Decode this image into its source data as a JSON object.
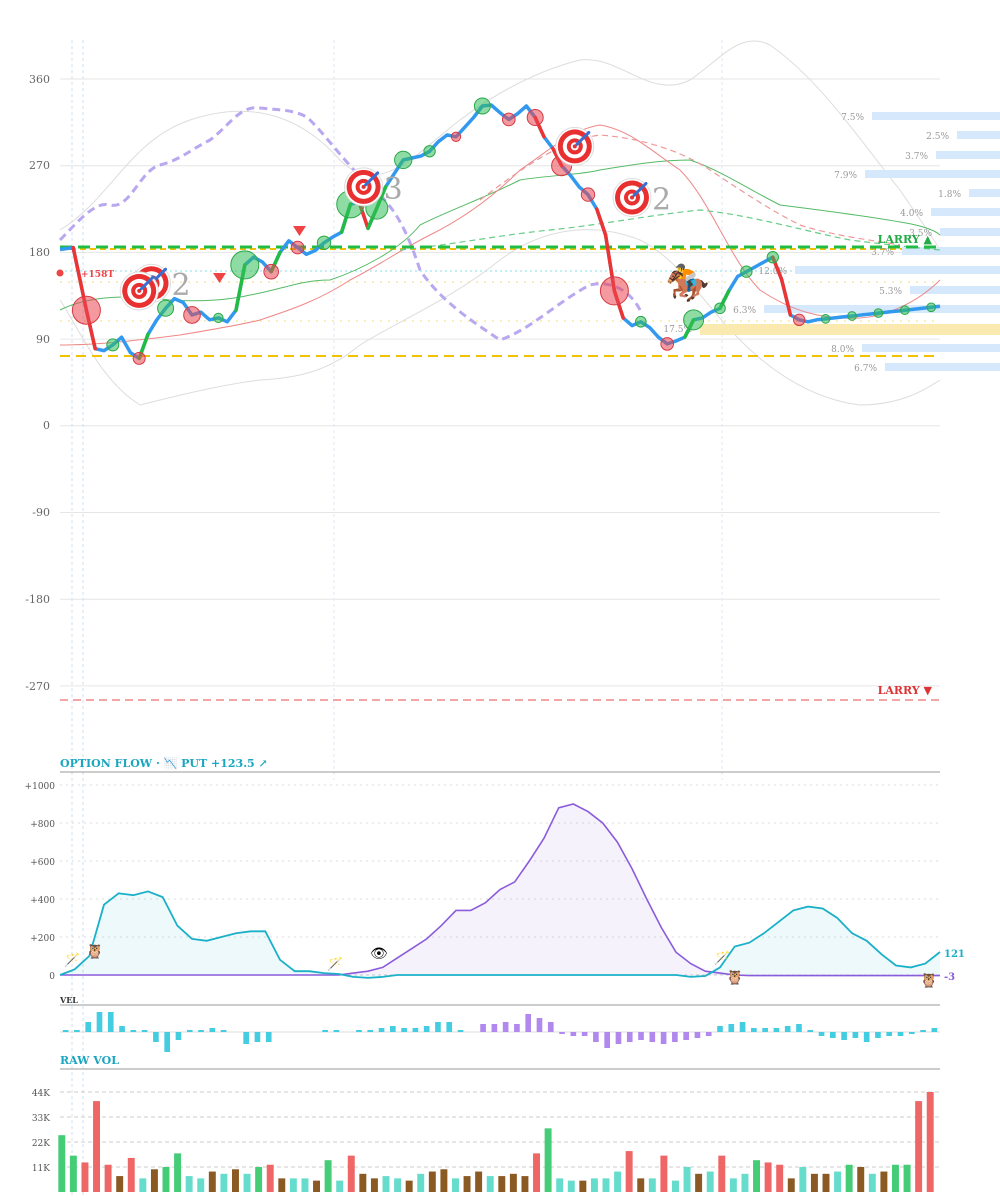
{
  "colors": {
    "price_line": "#3399ee",
    "up": "#22bb44",
    "down": "#ee3333",
    "ma_purple": "#b9a8f0",
    "band_grey": "#d8d8d8",
    "gold": "#f2c200",
    "flow_teal": "#1ab0c8",
    "flow_purple": "#8a5cdb",
    "vol_green": "#44cc77",
    "vol_red": "#ee6666",
    "vol_teal": "#66ddcc",
    "vol_brown": "#8a5a22",
    "vel_teal": "#44cce0",
    "vel_purple": "#b088ee",
    "pct_bar": "#d6e8fb"
  },
  "main_chart": {
    "type": "line",
    "y_ticks": [
      "360",
      "270",
      "180",
      "90",
      "0",
      "-90",
      "-180",
      "-270"
    ],
    "ylim": [
      -285,
      400
    ],
    "xlim": [
      0,
      100
    ],
    "price": {
      "x": [
        0,
        1.5,
        3,
        4,
        5,
        6,
        7,
        8,
        9,
        10,
        11,
        12,
        13,
        14,
        15,
        16,
        17,
        18,
        19,
        20,
        21,
        22,
        23,
        24,
        25,
        26,
        27,
        28,
        29,
        30,
        31,
        32,
        33,
        34,
        35,
        36,
        37,
        38,
        39,
        40,
        41,
        42,
        43,
        44,
        45,
        46,
        47,
        48,
        49,
        50,
        51,
        52,
        53,
        54,
        55,
        56,
        57,
        58,
        59,
        60,
        61,
        62,
        63,
        64,
        65,
        66,
        67,
        68,
        69,
        70,
        71,
        72,
        73,
        74,
        75,
        76,
        77,
        78,
        79,
        80,
        81,
        82,
        83,
        84,
        85,
        86,
        87,
        88,
        89,
        90,
        91,
        92,
        93,
        94,
        95,
        96,
        97,
        98,
        99,
        100
      ],
      "y": [
        183,
        185,
        120,
        80,
        78,
        84,
        92,
        76,
        70,
        95,
        110,
        122,
        132,
        128,
        115,
        118,
        110,
        112,
        108,
        120,
        167,
        175,
        170,
        160,
        180,
        192,
        185,
        178,
        182,
        190,
        196,
        201,
        230,
        232,
        205,
        226,
        248,
        262,
        276,
        278,
        280,
        285,
        295,
        302,
        300,
        310,
        320,
        332,
        333,
        325,
        318,
        324,
        332,
        320,
        300,
        288,
        270,
        260,
        248,
        240,
        225,
        198,
        140,
        112,
        104,
        108,
        102,
        92,
        85,
        88,
        92,
        110,
        112,
        118,
        122,
        140,
        155,
        160,
        165,
        170,
        175,
        152,
        115,
        110,
        108,
        110,
        111,
        112,
        113,
        114,
        115,
        116,
        117,
        118,
        119,
        120,
        121,
        122,
        123,
        124
      ]
    },
    "levels": [
      {
        "label": "LARRY ▲",
        "value": 185
      },
      {
        "label": "LARRY ▼",
        "value": -285
      }
    ],
    "price_badge": "+158T",
    "markers": [
      {
        "x": 10.4,
        "y": 148,
        "count": "2"
      },
      {
        "x": 9,
        "y": 140,
        "count": ""
      },
      {
        "x": 34.5,
        "y": 248,
        "count": "3"
      },
      {
        "x": 58.5,
        "y": 290,
        "count": ""
      },
      {
        "x": 65,
        "y": 237,
        "count": "2"
      }
    ],
    "pct_labels": [
      "7.5%",
      "2.5%",
      "3.7%",
      "7.9%",
      "1.8%",
      "4.0%",
      "3.5%",
      "3.7%",
      "12.0%",
      "5.3%",
      "6.3%",
      "17.5%",
      "8.0%",
      "6.7%"
    ]
  },
  "option_flow": {
    "title": "OPTION FLOW · 📉 PUT +123.5 ↗",
    "y_ticks": [
      "+1000",
      "+800",
      "+600",
      "+400",
      "+200",
      "0"
    ],
    "ylim": [
      -30,
      1000
    ],
    "teal": [
      0,
      30,
      100,
      370,
      430,
      420,
      440,
      410,
      260,
      190,
      180,
      200,
      220,
      230,
      230,
      80,
      20,
      20,
      10,
      5,
      -10,
      -15,
      -10,
      0,
      0,
      0,
      0,
      0,
      0,
      0,
      0,
      0,
      0,
      0,
      0,
      0,
      0,
      0,
      0,
      0,
      0,
      0,
      0,
      -10,
      -5,
      40,
      150,
      170,
      220,
      280,
      340,
      360,
      350,
      300,
      220,
      180,
      110,
      50,
      40,
      60,
      121
    ],
    "purple": [
      0,
      0,
      0,
      0,
      0,
      0,
      0,
      0,
      0,
      0,
      0,
      0,
      0,
      0,
      0,
      0,
      0,
      0,
      0,
      0,
      10,
      20,
      40,
      90,
      140,
      190,
      260,
      340,
      340,
      380,
      450,
      490,
      600,
      720,
      880,
      900,
      860,
      800,
      700,
      560,
      400,
      250,
      120,
      60,
      20,
      10,
      0,
      -3,
      -3,
      -3,
      -3,
      -3,
      -3,
      -3,
      -3,
      -3,
      -3,
      -3,
      -3,
      -3,
      -3
    ],
    "end_labels": [
      "121",
      "-3"
    ]
  },
  "velocity": {
    "title": "VEL",
    "values": [
      0.1,
      0.1,
      0.5,
      1.0,
      1.0,
      0.3,
      0.1,
      0.1,
      -0.5,
      -1.0,
      -0.4,
      0.1,
      0.1,
      0.2,
      0.1,
      0,
      -0.6,
      -0.5,
      -0.5,
      0,
      0,
      0,
      0,
      0.1,
      0.1,
      0,
      0.1,
      0.1,
      0.2,
      0.3,
      0.2,
      0.2,
      0.3,
      0.5,
      0.5,
      0.1,
      0,
      0.4,
      0.4,
      0.5,
      0.4,
      0.9,
      0.7,
      0.5,
      -0.1,
      -0.2,
      -0.2,
      -0.5,
      -0.8,
      -0.6,
      -0.5,
      -0.4,
      -0.5,
      -0.6,
      -0.5,
      -0.4,
      -0.3,
      -0.2,
      0.3,
      0.4,
      0.5,
      0.2,
      0.2,
      0.2,
      0.3,
      0.4,
      0.1,
      -0.2,
      -0.3,
      -0.4,
      -0.3,
      -0.5,
      -0.3,
      -0.2,
      -0.2,
      -0.1,
      0.1,
      0.2
    ],
    "ylim": [
      -1.2,
      1.2
    ]
  },
  "raw_vol": {
    "title": "RAW VOL",
    "y_ticks": [
      "44K",
      "33K",
      "22K",
      "11K"
    ],
    "ylim": [
      0,
      46000
    ],
    "bars": [
      {
        "v": 25000,
        "c": "green"
      },
      {
        "v": 16000,
        "c": "green"
      },
      {
        "v": 13000,
        "c": "red"
      },
      {
        "v": 40000,
        "c": "red"
      },
      {
        "v": 12000,
        "c": "red"
      },
      {
        "v": 7000,
        "c": "brown"
      },
      {
        "v": 15000,
        "c": "red"
      },
      {
        "v": 6000,
        "c": "teal"
      },
      {
        "v": 10000,
        "c": "brown"
      },
      {
        "v": 11000,
        "c": "green"
      },
      {
        "v": 17000,
        "c": "green"
      },
      {
        "v": 7000,
        "c": "teal"
      },
      {
        "v": 6000,
        "c": "teal"
      },
      {
        "v": 9000,
        "c": "brown"
      },
      {
        "v": 8000,
        "c": "teal"
      },
      {
        "v": 10000,
        "c": "brown"
      },
      {
        "v": 8000,
        "c": "teal"
      },
      {
        "v": 11000,
        "c": "green"
      },
      {
        "v": 12000,
        "c": "red"
      },
      {
        "v": 6000,
        "c": "brown"
      },
      {
        "v": 6000,
        "c": "teal"
      },
      {
        "v": 6000,
        "c": "teal"
      },
      {
        "v": 5000,
        "c": "brown"
      },
      {
        "v": 14000,
        "c": "green"
      },
      {
        "v": 5000,
        "c": "teal"
      },
      {
        "v": 16000,
        "c": "red"
      },
      {
        "v": 8000,
        "c": "brown"
      },
      {
        "v": 6000,
        "c": "brown"
      },
      {
        "v": 7000,
        "c": "teal"
      },
      {
        "v": 6000,
        "c": "teal"
      },
      {
        "v": 5000,
        "c": "brown"
      },
      {
        "v": 8000,
        "c": "teal"
      },
      {
        "v": 9000,
        "c": "brown"
      },
      {
        "v": 10000,
        "c": "brown"
      },
      {
        "v": 6000,
        "c": "teal"
      },
      {
        "v": 7000,
        "c": "brown"
      },
      {
        "v": 9000,
        "c": "brown"
      },
      {
        "v": 7000,
        "c": "teal"
      },
      {
        "v": 7000,
        "c": "brown"
      },
      {
        "v": 8000,
        "c": "brown"
      },
      {
        "v": 7000,
        "c": "brown"
      },
      {
        "v": 17000,
        "c": "red"
      },
      {
        "v": 28000,
        "c": "green"
      },
      {
        "v": 6000,
        "c": "teal"
      },
      {
        "v": 5000,
        "c": "teal"
      },
      {
        "v": 5000,
        "c": "brown"
      },
      {
        "v": 6000,
        "c": "teal"
      },
      {
        "v": 6000,
        "c": "teal"
      },
      {
        "v": 9000,
        "c": "teal"
      },
      {
        "v": 18000,
        "c": "red"
      },
      {
        "v": 6000,
        "c": "brown"
      },
      {
        "v": 6000,
        "c": "teal"
      },
      {
        "v": 16000,
        "c": "red"
      },
      {
        "v": 5000,
        "c": "teal"
      },
      {
        "v": 11000,
        "c": "teal"
      },
      {
        "v": 8000,
        "c": "brown"
      },
      {
        "v": 9000,
        "c": "teal"
      },
      {
        "v": 16000,
        "c": "red"
      },
      {
        "v": 6000,
        "c": "teal"
      },
      {
        "v": 8000,
        "c": "teal"
      },
      {
        "v": 14000,
        "c": "green"
      },
      {
        "v": 13000,
        "c": "red"
      },
      {
        "v": 12000,
        "c": "red"
      },
      {
        "v": 6000,
        "c": "brown"
      },
      {
        "v": 11000,
        "c": "teal"
      },
      {
        "v": 8000,
        "c": "brown"
      },
      {
        "v": 8000,
        "c": "brown"
      },
      {
        "v": 9000,
        "c": "teal"
      },
      {
        "v": 12000,
        "c": "green"
      },
      {
        "v": 11000,
        "c": "brown"
      },
      {
        "v": 8000,
        "c": "teal"
      },
      {
        "v": 9000,
        "c": "brown"
      },
      {
        "v": 12000,
        "c": "green"
      },
      {
        "v": 12000,
        "c": "green"
      },
      {
        "v": 40000,
        "c": "red"
      },
      {
        "v": 44000,
        "c": "red"
      }
    ]
  }
}
